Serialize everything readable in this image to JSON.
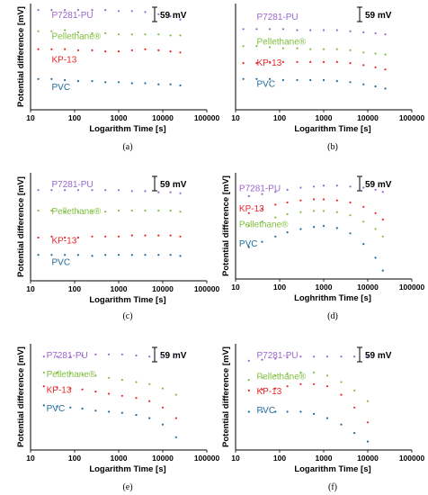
{
  "figure": {
    "colors": {
      "P7281-PU": "#9966cc",
      "Pellethane": "#7fbf3f",
      "KP-13": "#e8262a",
      "PVC": "#1f6a9a"
    },
    "chart_data": [
      {
        "type": "scatter",
        "panel": "(a)",
        "xlabel": "Logarithm Time [s]",
        "ylabel": "Potential difference [mV]",
        "xscale": "log",
        "xlim": [
          10,
          100000
        ],
        "x_ticks": [
          "10",
          "100",
          "1000",
          "10000",
          "100000"
        ],
        "scale_bar": "59 mV",
        "series": [
          {
            "name": "P7281-PU",
            "x": [
              15,
              30,
              60,
              120,
              250,
              500,
              1000,
              2000,
              4000,
              8000,
              15000,
              25000
            ],
            "values": [
              0.94,
              0.94,
              0.94,
              0.94,
              0.94,
              0.94,
              0.93,
              0.93,
              0.92,
              0.9,
              0.88,
              0.85
            ]
          },
          {
            "name": "Pellethane®",
            "x": [
              15,
              30,
              60,
              120,
              250,
              500,
              1000,
              2000,
              4000,
              8000,
              15000,
              25000
            ],
            "values": [
              0.74,
              0.74,
              0.75,
              0.73,
              0.72,
              0.72,
              0.71,
              0.71,
              0.71,
              0.71,
              0.7,
              0.7
            ]
          },
          {
            "name": "KP-13",
            "x": [
              15,
              30,
              60,
              120,
              250,
              500,
              1000,
              2000,
              4000,
              8000,
              15000,
              25000
            ],
            "values": [
              0.57,
              0.57,
              0.57,
              0.56,
              0.56,
              0.55,
              0.55,
              0.56,
              0.57,
              0.56,
              0.55,
              0.54
            ]
          },
          {
            "name": "PVC",
            "x": [
              15,
              30,
              60,
              120,
              250,
              500,
              1000,
              2000,
              4000,
              8000,
              15000,
              25000
            ],
            "values": [
              0.29,
              0.29,
              0.28,
              0.27,
              0.27,
              0.26,
              0.26,
              0.25,
              0.25,
              0.24,
              0.24,
              0.23
            ]
          }
        ]
      },
      {
        "type": "scatter",
        "panel": "(b)",
        "xlabel": "Logarithm Time [s]",
        "ylabel": "",
        "xscale": "log",
        "xlim": [
          10,
          100000
        ],
        "x_ticks": [
          "10",
          "100",
          "1000",
          "10000",
          "100000"
        ],
        "scale_bar": "59 mV",
        "series": [
          {
            "name": "P7281-PU",
            "x": [
              15,
              30,
              60,
              120,
              250,
              500,
              1000,
              2000,
              4000,
              8000,
              15000,
              25000
            ],
            "values": [
              0.76,
              0.76,
              0.76,
              0.76,
              0.75,
              0.75,
              0.75,
              0.75,
              0.74,
              0.73,
              0.72,
              0.71
            ]
          },
          {
            "name": "Pellethane®",
            "x": [
              15,
              30,
              60,
              120,
              250,
              500,
              1000,
              2000,
              4000,
              8000,
              15000,
              25000
            ],
            "values": [
              0.6,
              0.6,
              0.59,
              0.58,
              0.58,
              0.57,
              0.57,
              0.57,
              0.56,
              0.54,
              0.53,
              0.52
            ]
          },
          {
            "name": "KP-13",
            "x": [
              15,
              30,
              60,
              120,
              250,
              500,
              1000,
              2000,
              4000,
              8000,
              15000,
              25000
            ],
            "values": [
              0.44,
              0.44,
              0.45,
              0.45,
              0.45,
              0.45,
              0.45,
              0.45,
              0.44,
              0.42,
              0.4,
              0.38
            ]
          },
          {
            "name": "PVC",
            "x": [
              15,
              30,
              60,
              120,
              250,
              500,
              1000,
              2000,
              4000,
              8000,
              15000,
              25000
            ],
            "values": [
              0.29,
              0.29,
              0.29,
              0.28,
              0.28,
              0.28,
              0.28,
              0.27,
              0.26,
              0.24,
              0.22,
              0.2
            ]
          }
        ]
      },
      {
        "type": "scatter",
        "panel": "(c)",
        "xlabel": "Logarithm Time [s]",
        "ylabel": "Potential difference [mV]",
        "xscale": "log",
        "xlim": [
          10,
          100000
        ],
        "x_ticks": [
          "10",
          "100",
          "1000",
          "10000",
          "100000"
        ],
        "scale_bar": "59 mV",
        "series": [
          {
            "name": "P7281-PU",
            "x": [
              15,
              30,
              60,
              120,
              250,
              500,
              1000,
              2000,
              4000,
              8000,
              15000,
              25000
            ],
            "values": [
              0.84,
              0.84,
              0.84,
              0.84,
              0.84,
              0.84,
              0.84,
              0.83,
              0.83,
              0.82,
              0.82,
              0.81
            ]
          },
          {
            "name": "Pellethane®",
            "x": [
              15,
              30,
              60,
              120,
              250,
              500,
              1000,
              2000,
              4000,
              8000,
              15000,
              25000
            ],
            "values": [
              0.65,
              0.65,
              0.64,
              0.64,
              0.64,
              0.64,
              0.65,
              0.65,
              0.65,
              0.65,
              0.65,
              0.64
            ]
          },
          {
            "name": "KP-13",
            "x": [
              15,
              30,
              60,
              120,
              250,
              500,
              1000,
              2000,
              4000,
              8000,
              15000,
              25000
            ],
            "values": [
              0.4,
              0.41,
              0.4,
              0.4,
              0.41,
              0.41,
              0.41,
              0.42,
              0.42,
              0.42,
              0.42,
              0.41
            ]
          },
          {
            "name": "PVC",
            "x": [
              15,
              30,
              60,
              120,
              250,
              500,
              1000,
              2000,
              4000,
              8000,
              15000,
              25000
            ],
            "values": [
              0.24,
              0.24,
              0.24,
              0.24,
              0.23,
              0.24,
              0.24,
              0.24,
              0.24,
              0.24,
              0.24,
              0.23
            ]
          }
        ]
      },
      {
        "type": "scatter",
        "panel": "(d)",
        "xlabel": "Loghrithm Time [s]",
        "ylabel": "Potential difference [mV]",
        "xscale": "log",
        "xlim": [
          10,
          100000
        ],
        "x_ticks": [
          "10",
          "100",
          "1000",
          "10000",
          "100000"
        ],
        "scale_bar": "59 mV",
        "series": [
          {
            "name": "P7281-PU",
            "x": [
              20,
              40,
              80,
              150,
              300,
              600,
              1000,
              2000,
              4000,
              8000,
              15000,
              22000
            ],
            "values": [
              0.78,
              0.8,
              0.82,
              0.84,
              0.86,
              0.87,
              0.88,
              0.88,
              0.87,
              0.86,
              0.84,
              0.82
            ]
          },
          {
            "name": "KP-13",
            "x": [
              20,
              40,
              80,
              150,
              300,
              600,
              1000,
              2000,
              4000,
              8000,
              15000,
              22000
            ],
            "values": [
              0.62,
              0.66,
              0.7,
              0.72,
              0.74,
              0.75,
              0.75,
              0.74,
              0.72,
              0.68,
              0.62,
              0.56
            ]
          },
          {
            "name": "Pellethane®",
            "x": [
              20,
              40,
              80,
              150,
              300,
              600,
              1000,
              2000,
              4000,
              8000,
              15000,
              22000
            ],
            "values": [
              0.5,
              0.54,
              0.58,
              0.61,
              0.63,
              0.64,
              0.64,
              0.63,
              0.6,
              0.54,
              0.47,
              0.4
            ]
          },
          {
            "name": "PVC",
            "x": [
              20,
              40,
              80,
              150,
              300,
              600,
              1000,
              2000,
              4000,
              8000,
              15000,
              22000
            ],
            "values": [
              0.3,
              0.35,
              0.4,
              0.44,
              0.47,
              0.49,
              0.5,
              0.48,
              0.43,
              0.33,
              0.2,
              0.08
            ]
          }
        ]
      },
      {
        "type": "scatter",
        "panel": "(e)",
        "xlabel": "Logarithm Time [s]",
        "ylabel": "Potential difference [mV]",
        "xscale": "log",
        "xlim": [
          10,
          100000
        ],
        "x_ticks": [
          "10",
          "100",
          "1000",
          "10000",
          "100000"
        ],
        "scale_bar": "59 mV",
        "series": [
          {
            "name": "P7281-PU",
            "x": [
              20,
              40,
              80,
              150,
              300,
              600,
              1200,
              2500,
              5000,
              10000,
              20000
            ],
            "values": [
              0.88,
              0.88,
              0.88,
              0.89,
              0.9,
              0.9,
              0.9,
              0.89,
              0.88,
              0.87,
              0.87
            ]
          },
          {
            "name": "Pellethane®",
            "x": [
              20,
              40,
              80,
              150,
              300,
              600,
              1200,
              2500,
              5000,
              10000,
              20000
            ],
            "values": [
              0.73,
              0.73,
              0.72,
              0.71,
              0.7,
              0.68,
              0.66,
              0.64,
              0.62,
              0.58,
              0.52
            ]
          },
          {
            "name": "KP-13",
            "x": [
              20,
              40,
              80,
              150,
              300,
              600,
              1200,
              2500,
              5000,
              10000,
              20000
            ],
            "values": [
              0.6,
              0.59,
              0.58,
              0.57,
              0.55,
              0.53,
              0.51,
              0.49,
              0.46,
              0.4,
              0.3
            ]
          },
          {
            "name": "PVC",
            "x": [
              20,
              40,
              80,
              150,
              300,
              600,
              1200,
              2500,
              5000,
              10000,
              20000
            ],
            "values": [
              0.42,
              0.41,
              0.4,
              0.39,
              0.37,
              0.36,
              0.35,
              0.33,
              0.3,
              0.24,
              0.12
            ]
          }
        ]
      },
      {
        "type": "scatter",
        "panel": "(f)",
        "xlabel": "Logarithm Time [s]",
        "ylabel": "Potential difference [mV]",
        "xscale": "log",
        "xlim": [
          10,
          100000
        ],
        "x_ticks": [
          "10",
          "100",
          "1000",
          "10000",
          "100000"
        ],
        "scale_bar": "59 mV",
        "series": [
          {
            "name": "P7281-PU",
            "x": [
              20,
              40,
              80,
              150,
              300,
              600,
              1200,
              2500,
              5000,
              10000
            ],
            "values": [
              0.84,
              0.85,
              0.86,
              0.87,
              0.88,
              0.88,
              0.88,
              0.88,
              0.88,
              0.88
            ]
          },
          {
            "name": "Pellethane®",
            "x": [
              20,
              40,
              80,
              150,
              300,
              600,
              1200,
              2500,
              5000,
              10000
            ],
            "values": [
              0.66,
              0.68,
              0.7,
              0.72,
              0.73,
              0.73,
              0.7,
              0.64,
              0.56,
              0.46
            ]
          },
          {
            "name": "KP-13",
            "x": [
              20,
              40,
              80,
              150,
              300,
              600,
              1200,
              2500,
              5000,
              10000
            ],
            "values": [
              0.56,
              0.57,
              0.58,
              0.6,
              0.62,
              0.62,
              0.6,
              0.52,
              0.4,
              0.26
            ]
          },
          {
            "name": "PVC",
            "x": [
              20,
              40,
              80,
              150,
              300,
              600,
              1200,
              2500,
              5000,
              10000
            ],
            "values": [
              0.36,
              0.36,
              0.36,
              0.36,
              0.36,
              0.34,
              0.3,
              0.24,
              0.16,
              0.08
            ]
          }
        ]
      }
    ]
  }
}
